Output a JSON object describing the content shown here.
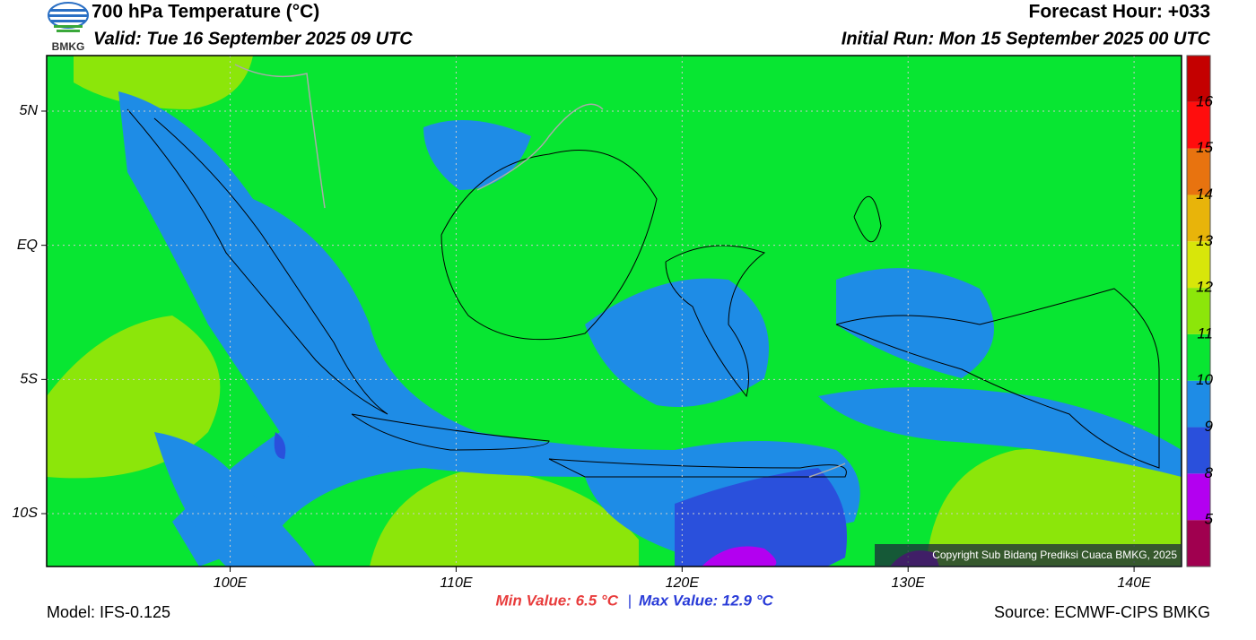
{
  "header": {
    "logo_text": "BMKG",
    "title": "700 hPa Temperature (°C)",
    "valid": "Valid: Tue 16 September 2025 09 UTC",
    "forecast_hour": "Forecast Hour: +033",
    "initial_run": "Initial Run: Mon 15 September 2025 00 UTC"
  },
  "map": {
    "lonlim": [
      91.88,
      142.1
    ],
    "latlim": [
      -11.97,
      7.07
    ],
    "lat_ticks": [
      {
        "value": 5,
        "label": "5N"
      },
      {
        "value": 0,
        "label": "EQ"
      },
      {
        "value": -5,
        "label": "5S"
      },
      {
        "value": -10,
        "label": "10S"
      }
    ],
    "lon_ticks": [
      {
        "value": 100,
        "label": "100E"
      },
      {
        "value": 110,
        "label": "110E"
      },
      {
        "value": 120,
        "label": "120E"
      },
      {
        "value": 130,
        "label": "130E"
      },
      {
        "value": 140,
        "label": "140E"
      }
    ],
    "copyright": "Copyright Sub Bidang Prediksi Cuaca BMKG, 2025"
  },
  "colorbar": {
    "colors": [
      "#a0004f",
      "#b300f0",
      "#2a50dc",
      "#1e8ce6",
      "#08e632",
      "#8ce60a",
      "#d8e60a",
      "#e8b40a",
      "#e8730f",
      "#ff0d0d",
      "#c40000"
    ],
    "labels": [
      5,
      8,
      9,
      10,
      11,
      12,
      13,
      14,
      15,
      16
    ]
  },
  "footer": {
    "model": "Model: IFS-0.125",
    "min_value": "Min Value: 6.5 °C",
    "separator": "|",
    "max_value": "Max Value: 12.9 °C",
    "source": "Source: ECMWF-CIPS BMKG"
  }
}
